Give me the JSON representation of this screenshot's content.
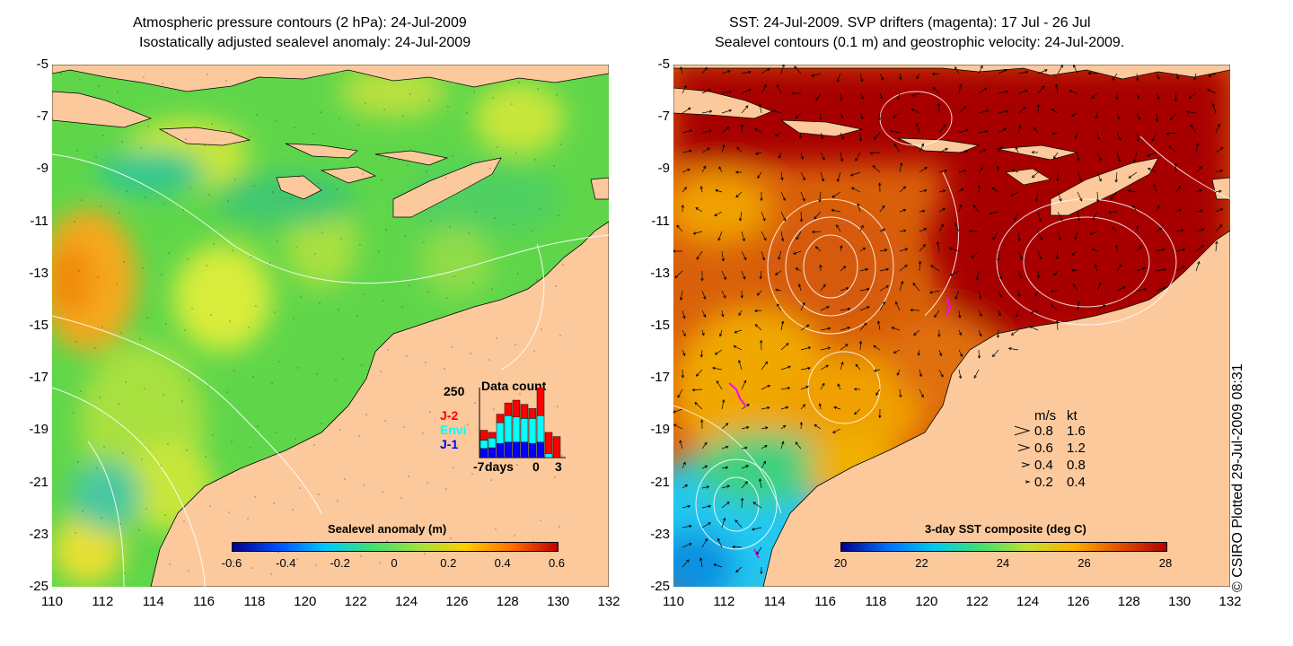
{
  "left_panel": {
    "title_line1": "Atmospheric pressure contours (2 hPa): 24-Jul-2009",
    "title_line2": "Isostatically adjusted sealevel anomaly: 24-Jul-2009",
    "colorbar": {
      "label": "Sealevel anomaly (m)",
      "ticks": [
        "-0.6",
        "-0.4",
        "-0.2",
        "0",
        "0.2",
        "0.4",
        "0.6"
      ]
    },
    "data_count": {
      "title": "Data count",
      "ymax": "250",
      "legend": [
        {
          "name": "J-2",
          "color": "#ff0000"
        },
        {
          "name": "Envi",
          "color": "#00ffff"
        },
        {
          "name": "J-1",
          "color": "#0000ff"
        }
      ],
      "xlabel_left": "-7",
      "xlabel_mid": "days",
      "xlabel_zero": "0",
      "xlabel_right": "3",
      "bars": [
        {
          "j1": 0.13,
          "envi": 0.12,
          "j2": 0.14
        },
        {
          "j1": 0.14,
          "envi": 0.14,
          "j2": 0.08
        },
        {
          "j1": 0.2,
          "envi": 0.3,
          "j2": 0.12
        },
        {
          "j1": 0.22,
          "envi": 0.38,
          "j2": 0.18
        },
        {
          "j1": 0.22,
          "envi": 0.36,
          "j2": 0.24
        },
        {
          "j1": 0.22,
          "envi": 0.34,
          "j2": 0.2
        },
        {
          "j1": 0.2,
          "envi": 0.36,
          "j2": 0.14
        },
        {
          "j1": 0.22,
          "envi": 0.38,
          "j2": 0.4
        },
        {
          "j1": 0.0,
          "envi": 0.06,
          "j2": 0.3
        },
        {
          "j1": 0.0,
          "envi": 0.0,
          "j2": 0.3
        }
      ]
    }
  },
  "right_panel": {
    "title_line1": "SST: 24-Jul-2009. SVP drifters (magenta): 17 Jul - 26 Jul",
    "title_line2": "Sealevel contours (0.1 m) and geostrophic velocity: 24-Jul-2009.",
    "colorbar": {
      "label": "3-day SST composite (deg C)",
      "ticks": [
        "20",
        "22",
        "24",
        "26",
        "28"
      ]
    },
    "velocity_legend": {
      "header_ms": "m/s",
      "header_kt": "kt",
      "rows": [
        {
          "ms": "0.8",
          "kt": "1.6",
          "scale": 1.0
        },
        {
          "ms": "0.6",
          "kt": "1.2",
          "scale": 0.75
        },
        {
          "ms": "0.4",
          "kt": "0.8",
          "scale": 0.5
        },
        {
          "ms": "0.2",
          "kt": "0.4",
          "scale": 0.25
        }
      ]
    }
  },
  "axes": {
    "y_ticks": [
      "-5",
      "-7",
      "-9",
      "-11",
      "-13",
      "-15",
      "-17",
      "-19",
      "-21",
      "-23",
      "-25"
    ],
    "x_ticks": [
      "110",
      "112",
      "114",
      "116",
      "118",
      "120",
      "122",
      "124",
      "126",
      "128",
      "130",
      "132"
    ]
  },
  "credit": "© CSIRO Plotted 29-Jul-2009 08:31",
  "colors": {
    "land": "#fcc99c",
    "sla_green": "#66d94a",
    "sst_red": "#b00000",
    "sst_orange": "#e8780a"
  }
}
